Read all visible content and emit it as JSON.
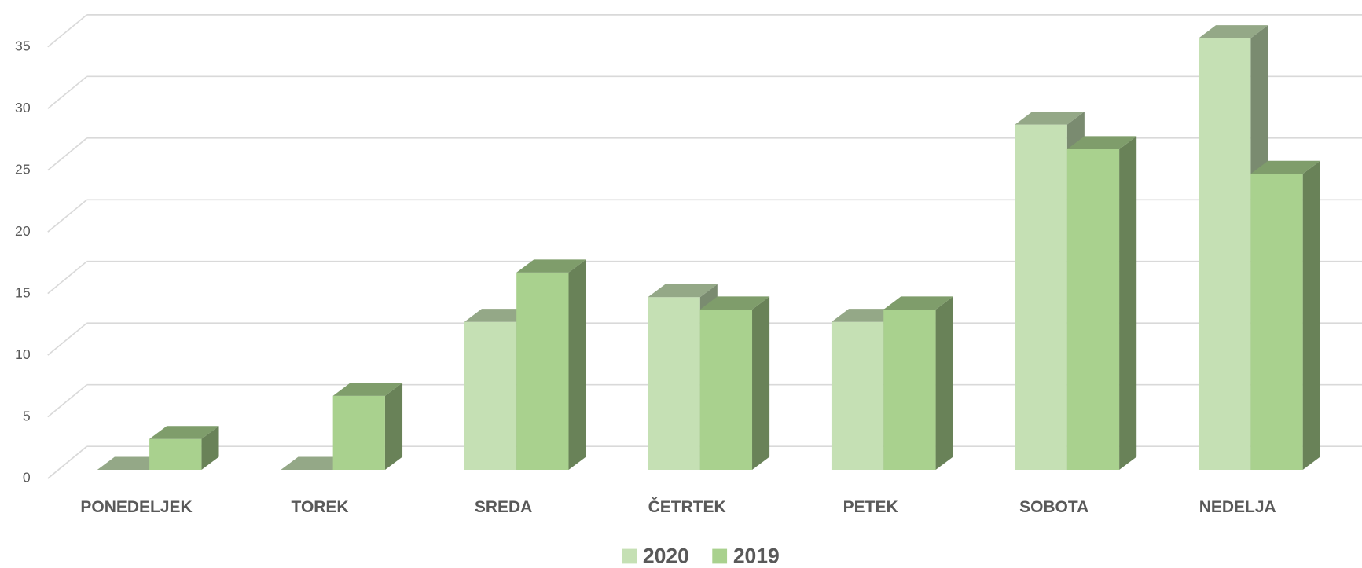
{
  "chart_data": {
    "type": "bar3d",
    "categories": [
      "PONEDELJEK",
      "TOREK",
      "SREDA",
      "ČETRTEK",
      "PETEK",
      "SOBOTA",
      "NEDELJA"
    ],
    "series": [
      {
        "name": "2020",
        "color": "#c5e0b4",
        "values": [
          0,
          0,
          12,
          14,
          12,
          28,
          35
        ]
      },
      {
        "name": "2019",
        "color": "#a9d18e",
        "values": [
          2.5,
          6,
          16,
          13,
          13,
          26,
          24
        ]
      }
    ],
    "ylim": [
      0,
      35
    ],
    "yticks": [
      0,
      5,
      10,
      15,
      20,
      25,
      30,
      35
    ],
    "grid": true,
    "legend": "bottom"
  }
}
